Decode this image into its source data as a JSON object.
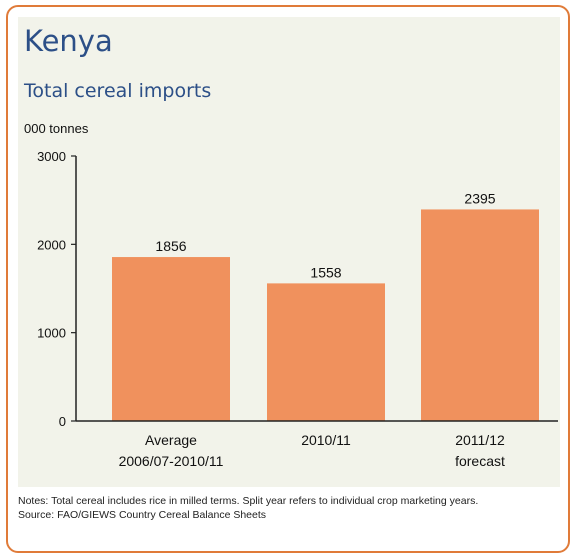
{
  "page": {
    "title": "Kenya",
    "subtitle": "Total cereal imports",
    "unit_label": "000 tonnes",
    "notes": "Notes: Total cereal includes rice in milled terms. Split year refers to individual crop marketing years.",
    "source": "Source: FAO/GIEWS Country Cereal Balance Sheets"
  },
  "chart_data": {
    "type": "bar",
    "title": "Total cereal imports",
    "ylabel": "000 tonnes",
    "xlabel": "",
    "categories": [
      [
        "Average",
        "2006/07-2010/11"
      ],
      [
        "2010/11"
      ],
      [
        "2011/12",
        "forecast"
      ]
    ],
    "values": [
      1856,
      1558,
      2395
    ],
    "data_labels": [
      "1856",
      "1558",
      "2395"
    ],
    "yticks": [
      0,
      1000,
      2000,
      3000
    ],
    "ylim": [
      0,
      3000
    ],
    "grid": false,
    "bar_color": "#f0915d",
    "axis_color": "#222222"
  }
}
